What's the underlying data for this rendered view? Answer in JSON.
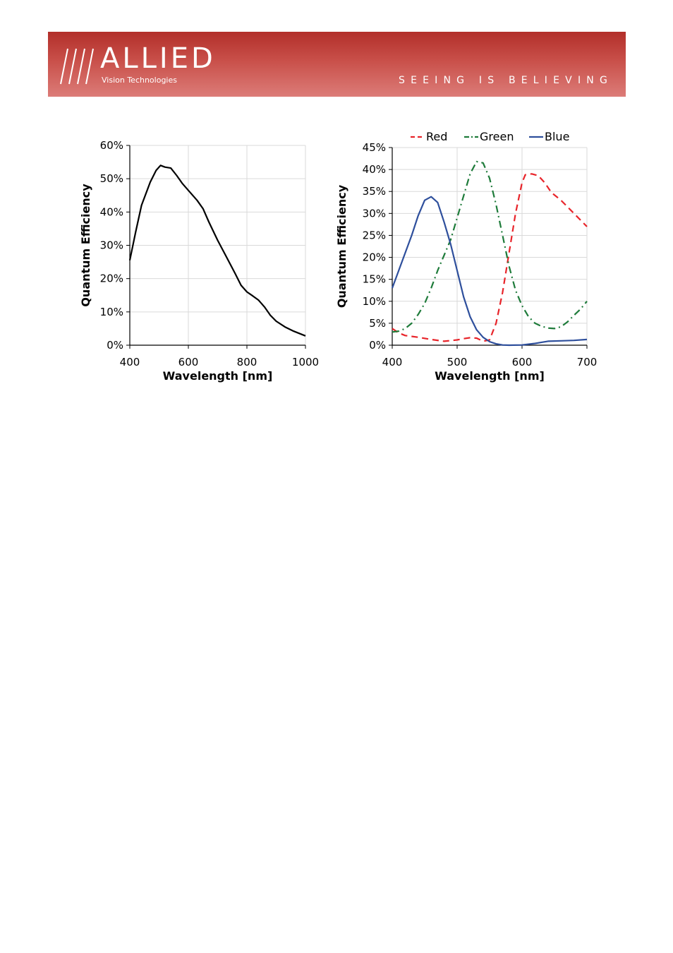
{
  "header": {
    "logo_mark_icon": "allied-slashes-logo-icon",
    "logo_text": "ALLIED",
    "logo_subtext": "Vision Technologies",
    "tagline": "SEEING IS BELIEVING",
    "banner_color": "#c0433e"
  },
  "chart_data": [
    {
      "type": "line",
      "xlabel": "Wavelength [nm]",
      "ylabel": "Quantum Efficiency",
      "xlim": [
        400,
        1000
      ],
      "ylim": [
        0,
        60
      ],
      "x_ticks": [
        400,
        600,
        800,
        1000
      ],
      "x_tick_labels": [
        "400",
        "600",
        "800",
        "1000"
      ],
      "y_ticks": [
        0,
        10,
        20,
        30,
        40,
        50,
        60
      ],
      "y_tick_labels": [
        "0%",
        "10%",
        "20%",
        "30%",
        "40%",
        "50%",
        "60%"
      ],
      "grid": true,
      "series": [
        {
          "color": "#000000",
          "dash": "solid",
          "points": [
            [
              400,
              25.5
            ],
            [
              420,
              34
            ],
            [
              440,
              42
            ],
            [
              470,
              49
            ],
            [
              490,
              52.5
            ],
            [
              505,
              54
            ],
            [
              520,
              53.5
            ],
            [
              540,
              53.2
            ],
            [
              560,
              51
            ],
            [
              580,
              48.5
            ],
            [
              600,
              46.5
            ],
            [
              630,
              43.5
            ],
            [
              650,
              41
            ],
            [
              670,
              37
            ],
            [
              700,
              31.5
            ],
            [
              730,
              26.5
            ],
            [
              760,
              21.5
            ],
            [
              780,
              18
            ],
            [
              800,
              16
            ],
            [
              820,
              14.8
            ],
            [
              840,
              13.5
            ],
            [
              860,
              11.5
            ],
            [
              880,
              9
            ],
            [
              900,
              7.2
            ],
            [
              930,
              5.5
            ],
            [
              960,
              4.2
            ],
            [
              1000,
              2.8
            ]
          ]
        }
      ]
    },
    {
      "type": "line",
      "xlabel": "Wavelength [nm]",
      "ylabel": "Quantum Efficiency",
      "xlim": [
        400,
        700
      ],
      "ylim": [
        0,
        45
      ],
      "x_ticks": [
        400,
        500,
        600,
        700
      ],
      "x_tick_labels": [
        "400",
        "500",
        "600",
        "700"
      ],
      "y_ticks": [
        0,
        5,
        10,
        15,
        20,
        25,
        30,
        35,
        40,
        45
      ],
      "y_tick_labels": [
        "0%",
        "5%",
        "10%",
        "15%",
        "20%",
        "25%",
        "30%",
        "35%",
        "40%",
        "45%"
      ],
      "grid": true,
      "legend_position": "top",
      "series": [
        {
          "name": "Red",
          "color": "#e8242a",
          "dash": "dash",
          "points": [
            [
              400,
              3.8
            ],
            [
              410,
              2.8
            ],
            [
              420,
              2.2
            ],
            [
              440,
              1.8
            ],
            [
              460,
              1.3
            ],
            [
              480,
              0.9
            ],
            [
              500,
              1.2
            ],
            [
              510,
              1.5
            ],
            [
              520,
              1.7
            ],
            [
              530,
              1.6
            ],
            [
              540,
              0.9
            ],
            [
              550,
              1.2
            ],
            [
              560,
              5
            ],
            [
              570,
              12
            ],
            [
              580,
              21
            ],
            [
              590,
              30
            ],
            [
              600,
              37
            ],
            [
              605,
              38.8
            ],
            [
              615,
              39
            ],
            [
              625,
              38.6
            ],
            [
              635,
              37
            ],
            [
              645,
              34.8
            ],
            [
              660,
              33
            ],
            [
              680,
              30
            ],
            [
              700,
              27
            ]
          ]
        },
        {
          "name": "Green",
          "color": "#1e7b3a",
          "dash": "dashdot",
          "points": [
            [
              400,
              3
            ],
            [
              410,
              3.2
            ],
            [
              420,
              3.8
            ],
            [
              430,
              5
            ],
            [
              440,
              7
            ],
            [
              450,
              9.5
            ],
            [
              460,
              13
            ],
            [
              470,
              17
            ],
            [
              480,
              20.5
            ],
            [
              490,
              24
            ],
            [
              500,
              29
            ],
            [
              510,
              34
            ],
            [
              520,
              39
            ],
            [
              530,
              41.8
            ],
            [
              540,
              41.5
            ],
            [
              550,
              38
            ],
            [
              560,
              32
            ],
            [
              570,
              25
            ],
            [
              580,
              18
            ],
            [
              590,
              12.5
            ],
            [
              600,
              9
            ],
            [
              610,
              6.5
            ],
            [
              620,
              5
            ],
            [
              630,
              4.3
            ],
            [
              640,
              3.9
            ],
            [
              650,
              3.8
            ],
            [
              660,
              4.2
            ],
            [
              670,
              5.3
            ],
            [
              680,
              6.8
            ],
            [
              690,
              8.2
            ],
            [
              700,
              10
            ]
          ]
        },
        {
          "name": "Blue",
          "color": "#2e4f9c",
          "dash": "solid",
          "points": [
            [
              400,
              13
            ],
            [
              410,
              17
            ],
            [
              420,
              21
            ],
            [
              430,
              25
            ],
            [
              440,
              29.5
            ],
            [
              450,
              33
            ],
            [
              460,
              33.8
            ],
            [
              470,
              32.5
            ],
            [
              480,
              28
            ],
            [
              490,
              23
            ],
            [
              500,
              17
            ],
            [
              510,
              11
            ],
            [
              520,
              6.5
            ],
            [
              530,
              3.5
            ],
            [
              540,
              1.8
            ],
            [
              550,
              0.8
            ],
            [
              560,
              0.3
            ],
            [
              570,
              0.05
            ],
            [
              580,
              0
            ],
            [
              600,
              0.05
            ],
            [
              620,
              0.4
            ],
            [
              640,
              0.9
            ],
            [
              660,
              1
            ],
            [
              680,
              1.1
            ],
            [
              700,
              1.3
            ]
          ]
        }
      ]
    }
  ]
}
